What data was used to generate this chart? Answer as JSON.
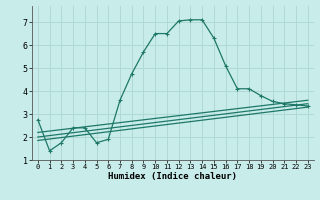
{
  "xlabel": "Humidex (Indice chaleur)",
  "xlim": [
    -0.5,
    23.5
  ],
  "ylim": [
    1.0,
    7.7
  ],
  "yticks": [
    1,
    2,
    3,
    4,
    5,
    6,
    7
  ],
  "xticks": [
    0,
    1,
    2,
    3,
    4,
    5,
    6,
    7,
    8,
    9,
    10,
    11,
    12,
    13,
    14,
    15,
    16,
    17,
    18,
    19,
    20,
    21,
    22,
    23
  ],
  "bg_color": "#c8ecea",
  "grid_color": "#b0d8d4",
  "line_color": "#1e7868",
  "main_x": [
    0,
    1,
    2,
    3,
    4,
    5,
    6,
    7,
    8,
    9,
    10,
    11,
    12,
    13,
    14,
    15,
    16,
    17,
    18,
    19,
    20,
    21,
    22,
    23
  ],
  "main_y": [
    2.75,
    1.4,
    1.75,
    2.4,
    2.4,
    1.75,
    1.9,
    3.6,
    4.75,
    5.7,
    6.5,
    6.5,
    7.05,
    7.1,
    7.1,
    6.3,
    5.1,
    4.1,
    4.1,
    3.8,
    3.55,
    3.45,
    3.4,
    3.35
  ],
  "flat_lines": [
    {
      "x": [
        0,
        23
      ],
      "y": [
        2.2,
        3.6
      ]
    },
    {
      "x": [
        0,
        23
      ],
      "y": [
        2.0,
        3.45
      ]
    },
    {
      "x": [
        0,
        23
      ],
      "y": [
        1.85,
        3.3
      ]
    }
  ]
}
